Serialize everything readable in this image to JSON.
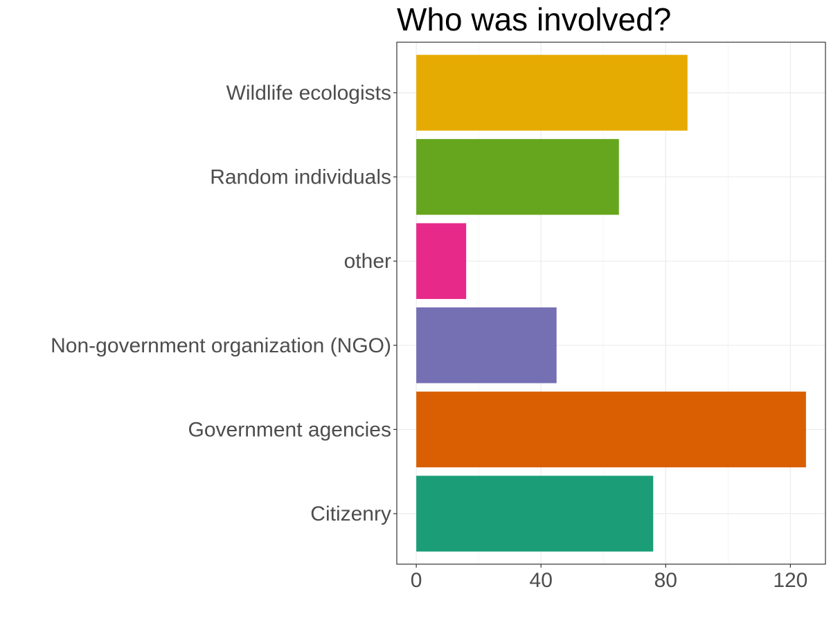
{
  "chart_data": {
    "type": "bar",
    "orientation": "horizontal",
    "title": "Who was involved?",
    "xlabel": "",
    "ylabel": "",
    "categories": [
      "Citizenry",
      "Government agencies",
      "Non-government organization (NGO)",
      "other",
      "Random individuals",
      "Wildlife ecologists"
    ],
    "values": [
      76,
      125,
      45,
      16,
      65,
      87
    ],
    "colors": [
      "#1b9e77",
      "#d95f02",
      "#7570b3",
      "#e7298a",
      "#66a61e",
      "#e6ab02"
    ],
    "xlim": [
      -6.25,
      131.25
    ],
    "x_ticks": [
      0,
      40,
      80,
      120
    ],
    "grid": true,
    "legend": "none"
  }
}
